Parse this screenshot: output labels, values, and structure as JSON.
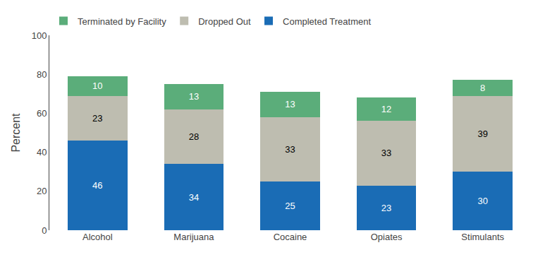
{
  "chart_data": {
    "type": "bar",
    "stacked": true,
    "data_labels": true,
    "grid": false,
    "legend": "upper left",
    "ylabel": "Percent",
    "categories": [
      "Alcohol",
      "Marijuana",
      "Cocaine",
      "Opiates",
      "Stimulants"
    ],
    "series": [
      {
        "name": "Completed Treatment",
        "color": "#1A6CB5",
        "values": [
          46,
          34,
          25,
          23,
          30
        ]
      },
      {
        "name": "Dropped Out",
        "color": "#BEBDB0",
        "values": [
          23,
          28,
          33,
          33,
          39
        ]
      },
      {
        "name": "Terminated by Facility",
        "color": "#5BAD7A",
        "values": [
          10,
          13,
          13,
          12,
          8
        ]
      }
    ],
    "ylim": [
      0,
      100
    ],
    "yticks": [
      0,
      20,
      40,
      60,
      80,
      100
    ]
  }
}
